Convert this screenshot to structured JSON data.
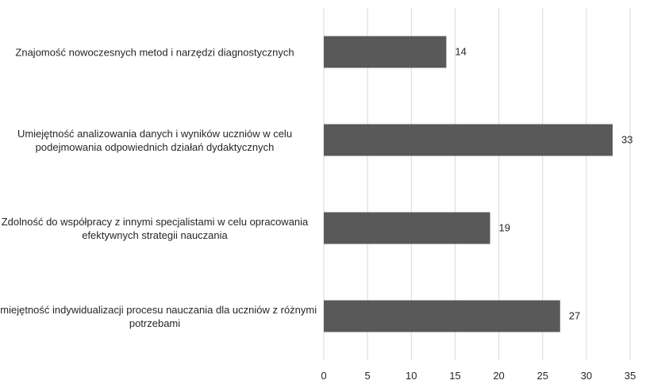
{
  "chart_data": {
    "type": "bar",
    "orientation": "horizontal",
    "title": "",
    "xlabel": "",
    "ylabel": "",
    "categories": [
      "Znajomość nowoczesnych metod i narzędzi diagnostycznych",
      "Umiejętność analizowania danych i wyników uczniów w celu podejmowania odpowiednich działań dydaktycznych",
      "Zdolność do współpracy z innymi specjalistami w celu opracowania efektywnych strategii nauczania",
      "Umiejętność indywidualizacji procesu nauczania dla uczniów z różnymi potrzebami"
    ],
    "values": [
      14,
      33,
      19,
      27
    ],
    "xlim": [
      0,
      35
    ],
    "xticks": [
      0,
      5,
      10,
      15,
      20,
      25,
      30,
      35
    ],
    "grid": true,
    "legend": "none",
    "data_labels": true,
    "bar_color": "#595959",
    "grid_color": "#d9d9d9"
  }
}
